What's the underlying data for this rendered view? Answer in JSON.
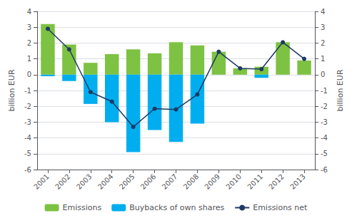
{
  "chart_data": {
    "type": "bar",
    "categories": [
      "2001",
      "2002",
      "2003",
      "2004",
      "2005",
      "2006",
      "2007",
      "2008",
      "2009",
      "2010",
      "2011",
      "2012",
      "2013"
    ],
    "series": [
      {
        "name": "Emissions",
        "type": "bar",
        "color": "#7DC242",
        "values": [
          3.2,
          1.9,
          0.75,
          1.3,
          1.6,
          1.35,
          2.05,
          1.85,
          1.45,
          0.4,
          0.5,
          2.05,
          0.9
        ]
      },
      {
        "name": "Buybacks of own shares",
        "type": "bar",
        "color": "#00AEEF",
        "values": [
          -0.1,
          -0.4,
          -1.85,
          -3.0,
          -4.9,
          -3.5,
          -4.25,
          -3.1,
          0.0,
          0.0,
          -0.2,
          0.0,
          0.0
        ]
      },
      {
        "name": "Emissions net",
        "type": "line",
        "axis": "y2",
        "color": "#1F3864",
        "marker": "circle",
        "line_style": "solid",
        "values": [
          2.9,
          1.6,
          -1.1,
          -1.7,
          -3.3,
          -2.15,
          -2.2,
          -1.25,
          1.45,
          0.4,
          0.35,
          2.05,
          1.0
        ]
      }
    ],
    "ylabel": "billion EUR",
    "y2label": "billion EUR",
    "ylim": [
      -6,
      4
    ],
    "yticks": [
      -6,
      -5,
      -4,
      -3,
      -2,
      -1,
      0,
      1,
      2,
      3,
      4
    ],
    "y2lim": [
      -6,
      4
    ],
    "y2ticks": [
      -6,
      -5,
      -4,
      -3,
      -2,
      -1,
      0,
      1,
      2,
      3,
      4
    ],
    "grid": true,
    "legend": "bottom"
  }
}
